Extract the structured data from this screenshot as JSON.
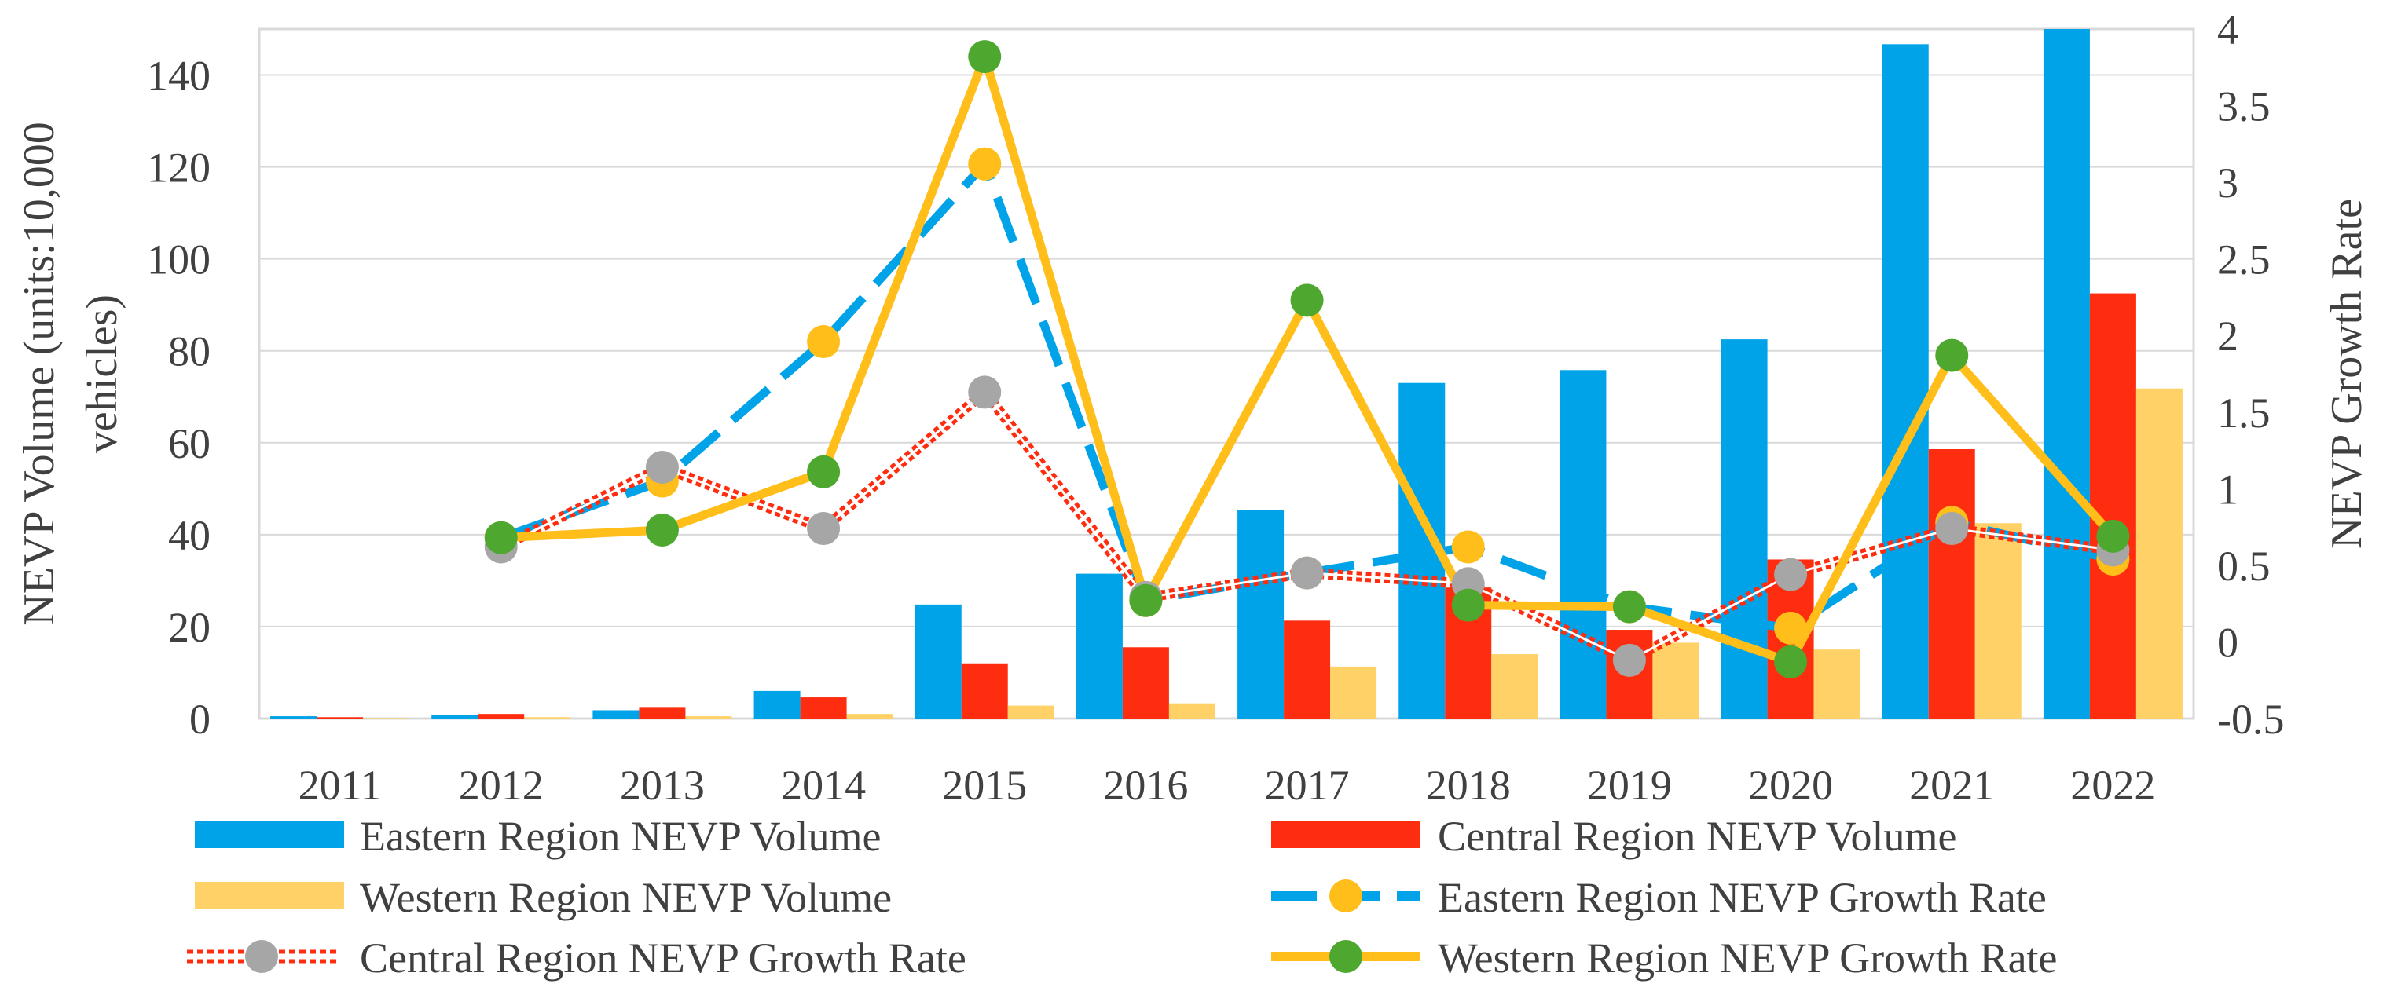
{
  "chart_data": {
    "type": "bar+line",
    "categories": [
      "2011",
      "2012",
      "2013",
      "2014",
      "2015",
      "2016",
      "2017",
      "2018",
      "2019",
      "2020",
      "2021",
      "2022"
    ],
    "bar_series": [
      {
        "name": "Eastern Region  NEVP Volume",
        "color": "#00A2E8",
        "values": [
          0.5,
          0.8,
          1.8,
          6.0,
          24.8,
          31.5,
          45.3,
          73.0,
          75.8,
          82.5,
          146.7,
          151.0
        ]
      },
      {
        "name": "Central Region NEVP  Volume",
        "color": "#FF2D0F",
        "values": [
          0.3,
          1.0,
          2.5,
          4.6,
          12.0,
          15.5,
          21.3,
          28.5,
          19.3,
          34.6,
          58.6,
          92.5
        ]
      },
      {
        "name": "Western Region NEVP Volume",
        "color": "#FFD166",
        "values": [
          0.1,
          0.3,
          0.5,
          1.0,
          2.8,
          3.3,
          11.3,
          14.0,
          16.5,
          15.0,
          42.5,
          71.8
        ]
      }
    ],
    "line_series": [
      {
        "name": "Eastern Region NEVP Growth Rate",
        "line_color": "#00A2E8",
        "marker_color": "#FFBE1A",
        "style": "dash",
        "values": [
          null,
          0.68,
          1.05,
          1.96,
          3.12,
          0.27,
          0.45,
          0.62,
          0.23,
          0.09,
          0.78,
          0.54
        ]
      },
      {
        "name": "Central  Region NEVP Growth Rate",
        "line_color": "#FF2D0F",
        "marker_color": "#A6A6A6",
        "style": "double-dot",
        "values": [
          null,
          0.62,
          1.14,
          0.74,
          1.63,
          0.29,
          0.45,
          0.38,
          -0.12,
          0.44,
          0.74,
          0.6
        ]
      },
      {
        "name": "Western Region NEVP Growth Rate",
        "line_color": "#FFBE1A",
        "marker_color": "#4EA72E",
        "style": "solid",
        "values": [
          null,
          0.68,
          0.73,
          1.11,
          3.82,
          0.27,
          2.23,
          0.24,
          0.23,
          -0.13,
          1.87,
          0.69
        ]
      }
    ],
    "y_left": {
      "label": "NEVP Volume (units:10,000 vehicles)",
      "label_lines": [
        "NEVP Volume (units:10,000",
        "vehicles)"
      ],
      "ticks": [
        "0",
        "20",
        "40",
        "60",
        "80",
        "100",
        "120",
        "140"
      ],
      "tick_values": [
        0,
        20,
        40,
        60,
        80,
        100,
        120,
        140
      ],
      "range": [
        0,
        150
      ]
    },
    "y_right": {
      "label": "NEVP Growth Rate",
      "ticks": [
        "-0.5",
        "0",
        "0.5",
        "1",
        "1.5",
        "2",
        "2.5",
        "3",
        "3.5",
        "4"
      ],
      "tick_values": [
        -0.5,
        0,
        0.5,
        1,
        1.5,
        2,
        2.5,
        3,
        3.5,
        4
      ],
      "range": [
        -0.5,
        4
      ]
    },
    "grid": true,
    "legend": "bottom"
  }
}
